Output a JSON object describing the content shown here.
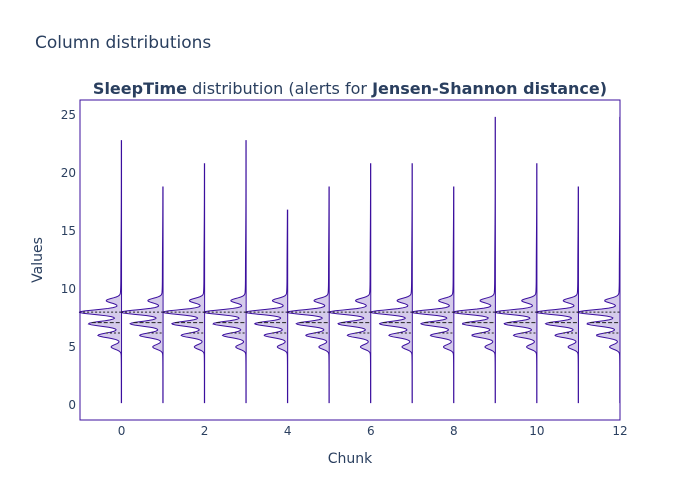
{
  "page": {
    "title": "Column distributions"
  },
  "chart_data": {
    "type": "violin",
    "title_parts": [
      {
        "text": "SleepTime",
        "bold": true
      },
      {
        "text": " distribution (alerts for ",
        "bold": false
      },
      {
        "text": "Jensen-Shannon distance)",
        "bold": true
      }
    ],
    "xlabel": "Chunk",
    "ylabel": "Values",
    "xlim": [
      -1,
      12
    ],
    "ylim": [
      -1.3,
      26.3
    ],
    "xticks": [
      0,
      2,
      4,
      6,
      8,
      10,
      12
    ],
    "yticks": [
      0,
      5,
      10,
      15,
      20,
      25
    ],
    "grid": false,
    "side": "negative",
    "fill_color": "#d5cbeb",
    "line_color": "#3b0f9e",
    "chunks": [
      0,
      1,
      2,
      3,
      4,
      5,
      6,
      7,
      8,
      9,
      10,
      11,
      12
    ],
    "y_min": 0.2,
    "y_max": [
      22.8,
      18.8,
      20.8,
      22.8,
      16.8,
      18.8,
      20.8,
      20.8,
      18.8,
      24.8,
      20.8,
      18.8,
      24.8
    ],
    "quartiles": [
      6.2,
      7.1,
      8.0
    ],
    "density_peaks": [
      {
        "y": 8.0,
        "height": 1.0
      },
      {
        "y": 7.0,
        "height": 0.75
      },
      {
        "y": 6.0,
        "height": 0.55
      },
      {
        "y": 9.0,
        "height": 0.35
      },
      {
        "y": 5.0,
        "height": 0.25
      }
    ]
  }
}
